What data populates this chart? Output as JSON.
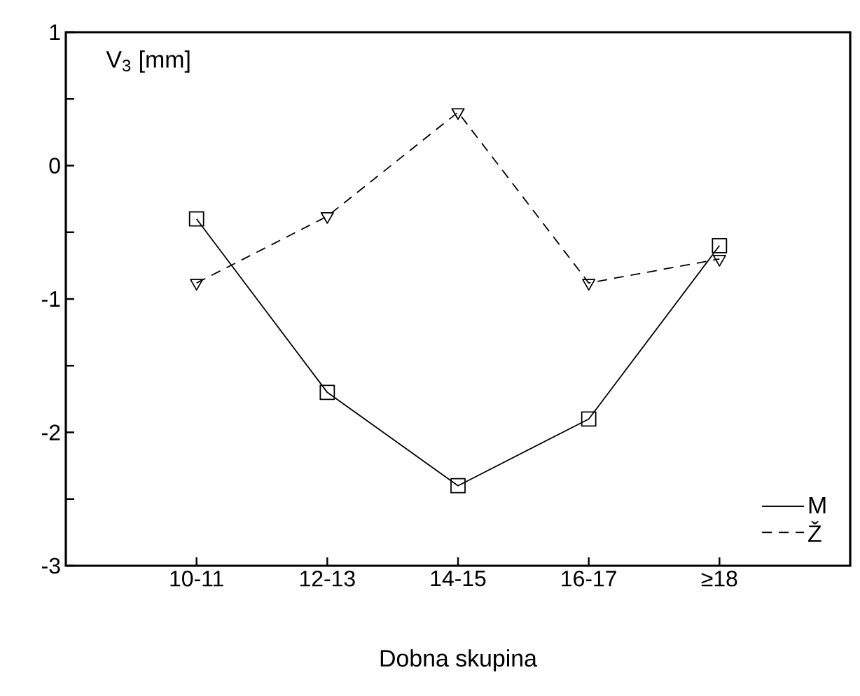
{
  "chart_data": {
    "type": "line",
    "xlabel": "Dobna skupina",
    "ylabel": "V$_{3}$ [mm]",
    "categories": [
      "10-11",
      "12-13",
      "14-15",
      "16-17",
      "≥18"
    ],
    "series": [
      {
        "name": "M",
        "color": "#000000",
        "marker": "square",
        "line_style": "solid",
        "values": [
          -0.4,
          -1.7,
          -2.4,
          -1.9,
          -0.6
        ]
      },
      {
        "name": "Ž",
        "color": "#000000",
        "marker": "triangle",
        "line_style": "dashed",
        "values": [
          -0.88,
          -0.38,
          0.4,
          -0.88,
          -0.7
        ]
      }
    ],
    "ylim": [
      -3,
      1
    ],
    "yticks": [
      -3,
      {
        "value": -2.5,
        "label": null
      },
      -2,
      {
        "value": -1.5,
        "label": null
      },
      -1,
      {
        "value": -0.5,
        "label": null
      },
      0,
      {
        "value": 0.5,
        "label": null
      },
      1
    ],
    "grid": false,
    "legend": "bottom right"
  }
}
